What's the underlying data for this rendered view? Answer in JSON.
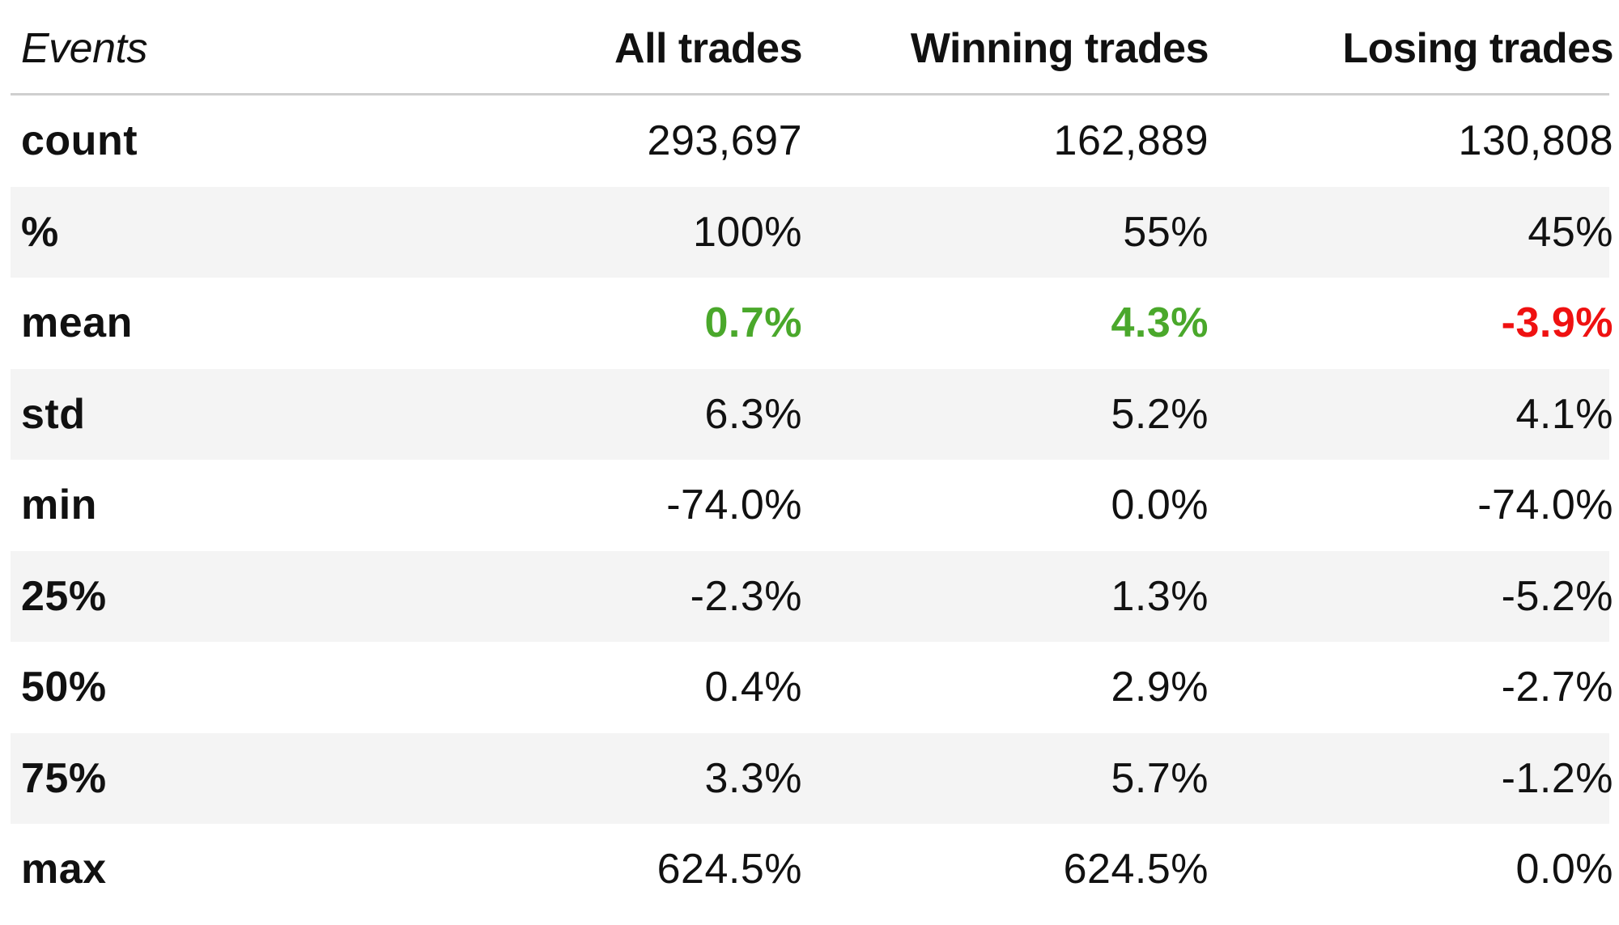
{
  "chart_data": {
    "type": "table",
    "columns": [
      "Events",
      "All trades",
      "Winning trades",
      "Losing trades"
    ],
    "rows": [
      {
        "label": "count",
        "values": [
          "293,697",
          "162,889",
          "130,808"
        ]
      },
      {
        "label": "%",
        "values": [
          "100%",
          "55%",
          "45%"
        ]
      },
      {
        "label": "mean",
        "values": [
          "0.7%",
          "4.3%",
          "-3.9%"
        ],
        "colors": [
          "#4aa82b",
          "#4aa82b",
          "#ef1111"
        ]
      },
      {
        "label": "std",
        "values": [
          "6.3%",
          "5.2%",
          "4.1%"
        ]
      },
      {
        "label": "min",
        "values": [
          "-74.0%",
          "0.0%",
          "-74.0%"
        ]
      },
      {
        "label": "25%",
        "values": [
          "-2.3%",
          "1.3%",
          "-5.2%"
        ]
      },
      {
        "label": "50%",
        "values": [
          "0.4%",
          "2.9%",
          "-2.7%"
        ]
      },
      {
        "label": "75%",
        "values": [
          "3.3%",
          "5.7%",
          "-1.2%"
        ]
      },
      {
        "label": "max",
        "values": [
          "624.5%",
          "624.5%",
          "0.0%"
        ]
      }
    ]
  }
}
